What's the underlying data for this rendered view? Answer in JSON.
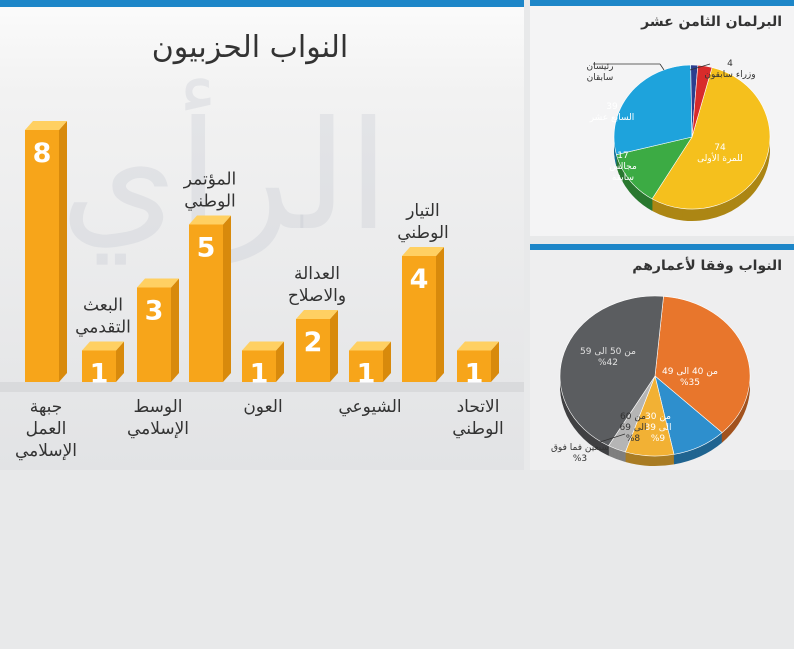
{
  "left_panel": {
    "title": "النواب الحزبيون",
    "watermark": "الرأي"
  },
  "right_top": {
    "title": "البرلمان الثامن عشر"
  },
  "right_bottom": {
    "title": "النواب وفقا لأعمارهم"
  },
  "chart_data": [
    {
      "type": "bar",
      "title": "النواب الحزبيون",
      "categories": [
        [
          "جبهة",
          "العمل",
          "الإسلامي"
        ],
        [
          "البعث",
          "التقدمي"
        ],
        [
          "الوسط",
          "الإسلامي"
        ],
        [
          "المؤتمر",
          "الوطني"
        ],
        [
          "العون"
        ],
        [
          "العدالة",
          "والاصلاح"
        ],
        [
          "الشيوعي"
        ],
        [
          "التيار",
          "الوطني"
        ],
        [
          "الاتحاد",
          "الوطني"
        ]
      ],
      "values": [
        8,
        1,
        3,
        5,
        1,
        2,
        1,
        4,
        1
      ],
      "colors": {
        "front": "#f7a51a",
        "top": "#ffd062",
        "side": "#d88a0c"
      }
    },
    {
      "type": "pie",
      "title": "البرلمان الثامن عشر",
      "slices": [
        {
          "lines": [
            "74",
            "للمرة الأولى"
          ],
          "value": 74,
          "color": "#f5c01d"
        },
        {
          "lines": [
            "17",
            "مجالس",
            "سابقة"
          ],
          "value": 17,
          "color": "#3cab44"
        },
        {
          "lines": [
            "39",
            "السابع عشر"
          ],
          "value": 39,
          "color": "#1ea3dc"
        },
        {
          "lines": [
            "رئيسان",
            "سابقان"
          ],
          "value": 2,
          "color": "#2c3e8f"
        },
        {
          "lines": [
            "4",
            "وزراء سابقون"
          ],
          "value": 4,
          "color": "#d82b2b"
        }
      ]
    },
    {
      "type": "pie",
      "title": "النواب وفقا لأعمارهم",
      "slices": [
        {
          "lines": [
            "من 40 الى 49",
            "%35"
          ],
          "value": 35,
          "color": "#e8762c"
        },
        {
          "lines": [
            "من 30",
            "الى 39",
            "%9"
          ],
          "value": 9,
          "color": "#2e8fcd"
        },
        {
          "lines": [
            "من 60",
            "الى 69",
            "%8"
          ],
          "value": 8,
          "color": "#f2b134"
        },
        {
          "lines": [
            "سبعين فما فوق",
            "%3"
          ],
          "value": 3,
          "color": "#b5b5b5"
        },
        {
          "lines": [
            "من 50 الى 59",
            "%42"
          ],
          "value": 42,
          "color": "#5b5d60"
        }
      ]
    }
  ]
}
